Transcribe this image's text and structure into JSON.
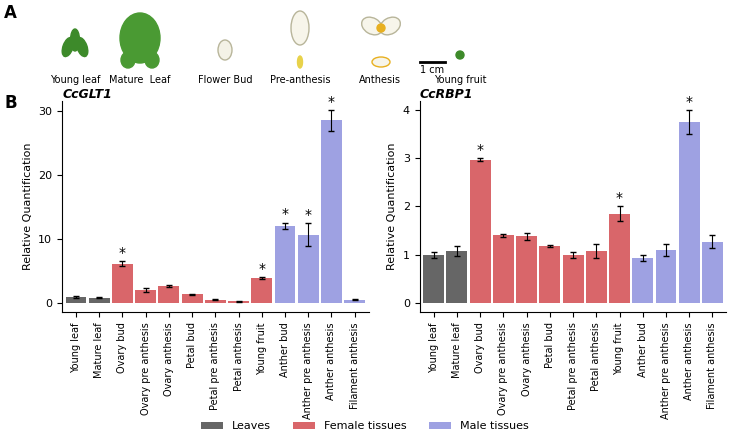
{
  "panel_labels": [
    "A",
    "B"
  ],
  "images": {
    "labels": [
      "Young leaf",
      "Mature  Leaf",
      "Flower Bud",
      "Pre-anthesis",
      "Anthesis",
      "Young fruit"
    ],
    "scale_bar": "1 cm"
  },
  "legend_entries": [
    {
      "name": "Leaves",
      "color": "#666666"
    },
    {
      "name": "Female tissues",
      "color": "#D9666A"
    },
    {
      "name": "Male tissues",
      "color": "#9EA1E2"
    }
  ],
  "legend": "lower center",
  "chart_data": [
    {
      "type": "bar",
      "title": "CcGLT1",
      "y_label": "Relative Quantification",
      "categories": [
        "Young leaf",
        "Mature leaf",
        "Ovary bud",
        "Ovary pre anthesis",
        "Ovary anthesis",
        "Petal bud",
        "Petal pre anthesis",
        "Petal anthesis",
        "Young fruit",
        "Anther bud",
        "Anther pre anthesis",
        "Anther anthesis",
        "Filament anthesis"
      ],
      "values": [
        1.0,
        0.9,
        6.2,
        2.1,
        2.7,
        1.4,
        0.6,
        0.35,
        4.0,
        12.1,
        10.7,
        28.5,
        0.6
      ],
      "errors": [
        0.1,
        0.1,
        0.4,
        0.3,
        0.15,
        0.15,
        0.1,
        0.1,
        0.15,
        0.5,
        1.8,
        1.6,
        0.1
      ],
      "colors": [
        "#666666",
        "#666666",
        "#D9666A",
        "#D9666A",
        "#D9666A",
        "#D9666A",
        "#D9666A",
        "#D9666A",
        "#D9666A",
        "#9EA1E2",
        "#9EA1E2",
        "#9EA1E2",
        "#9EA1E2"
      ],
      "significant": [
        false,
        false,
        true,
        false,
        false,
        false,
        false,
        false,
        true,
        true,
        true,
        true,
        false
      ],
      "significance_label": "*",
      "ylim": [
        -1.4,
        31.6
      ],
      "yticks": [
        0,
        10,
        20,
        30
      ],
      "grid": false
    },
    {
      "type": "bar",
      "title": "CcRBP1",
      "y_label": "Relative Quantification",
      "categories": [
        "Young leaf",
        "Mature leaf",
        "Ovary bud",
        "Ovary pre anthesis",
        "Ovary anthesis",
        "Petal bud",
        "Petal pre anthesis",
        "Petal anthesis",
        "Young fruit",
        "Anther bud",
        "Anther pre anthesis",
        "Anther anthesis",
        "Filament anthesis"
      ],
      "values": [
        1.0,
        1.08,
        2.97,
        1.4,
        1.38,
        1.18,
        1.0,
        1.08,
        1.85,
        0.93,
        1.1,
        3.75,
        1.27
      ],
      "errors": [
        0.06,
        0.1,
        0.03,
        0.03,
        0.07,
        0.02,
        0.06,
        0.15,
        0.15,
        0.07,
        0.12,
        0.25,
        0.14
      ],
      "colors": [
        "#666666",
        "#666666",
        "#D9666A",
        "#D9666A",
        "#D9666A",
        "#D9666A",
        "#D9666A",
        "#D9666A",
        "#D9666A",
        "#9EA1E2",
        "#9EA1E2",
        "#9EA1E2",
        "#9EA1E2"
      ],
      "significant": [
        false,
        false,
        true,
        false,
        false,
        false,
        false,
        false,
        true,
        false,
        false,
        true,
        false
      ],
      "significance_label": "*",
      "ylim": [
        -0.2,
        4.2
      ],
      "yticks": [
        0,
        1,
        2,
        3,
        4
      ],
      "grid": false
    }
  ]
}
